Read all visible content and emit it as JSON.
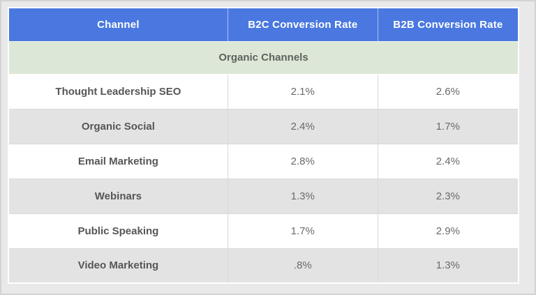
{
  "table": {
    "header": {
      "background": "#4a78e0",
      "text_color": "#ffffff",
      "columns": [
        "Channel",
        "B2C Conversion Rate",
        "B2B Conversion Rate"
      ]
    },
    "section": {
      "label": "Organic Channels",
      "background": "#dde7d8"
    },
    "rows": [
      {
        "channel": "Thought Leadership SEO",
        "b2c": "2.1%",
        "b2b": "2.6%"
      },
      {
        "channel": "Organic Social",
        "b2c": "2.4%",
        "b2b": "1.7%"
      },
      {
        "channel": "Email Marketing",
        "b2c": "2.8%",
        "b2b": "2.4%"
      },
      {
        "channel": "Webinars",
        "b2c": "1.3%",
        "b2b": "2.3%"
      },
      {
        "channel": "Public Speaking",
        "b2c": "1.7%",
        "b2b": "2.9%"
      },
      {
        "channel": "Video Marketing",
        "b2c": ".8%",
        "b2b": "1.3%"
      }
    ],
    "colors": {
      "page_background": "#e9e9e9",
      "page_border": "#d3d3d3",
      "row_alt_background": "#e3e3e3",
      "row_background": "#ffffff",
      "cell_border": "#d9d9d9",
      "channel_text": "#565656",
      "value_text": "#6a6a6a"
    }
  },
  "chart_data": {
    "type": "table",
    "title": "",
    "columns": [
      "Channel",
      "B2C Conversion Rate",
      "B2B Conversion Rate"
    ],
    "section_label": "Organic Channels",
    "categories": [
      "Thought Leadership SEO",
      "Organic Social",
      "Email Marketing",
      "Webinars",
      "Public Speaking",
      "Video Marketing"
    ],
    "series": [
      {
        "name": "B2C Conversion Rate",
        "values": [
          2.1,
          2.4,
          2.8,
          1.3,
          1.7,
          0.8
        ]
      },
      {
        "name": "B2B Conversion Rate",
        "values": [
          2.6,
          1.7,
          2.4,
          2.3,
          2.9,
          1.3
        ]
      }
    ]
  }
}
